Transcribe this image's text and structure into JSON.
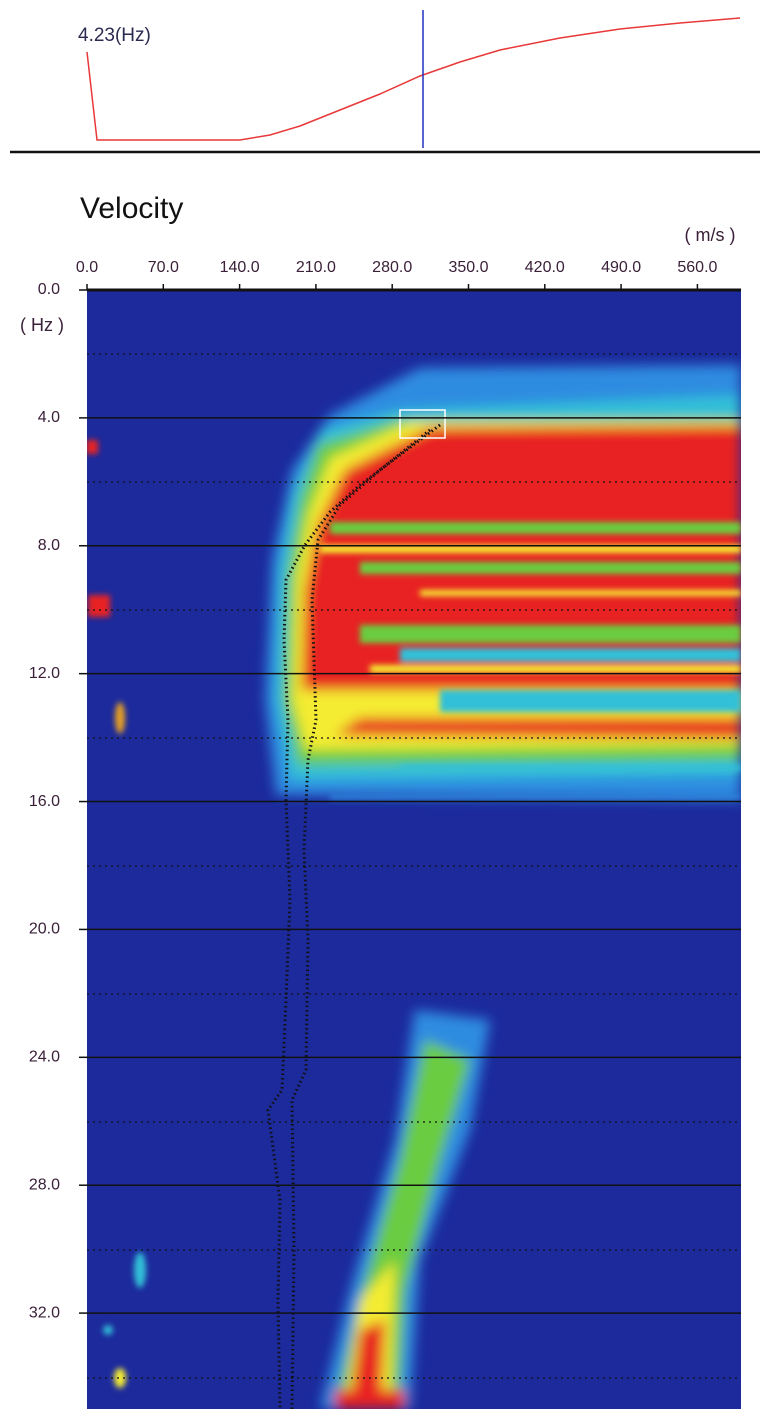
{
  "chart_data": {
    "type": "heatmap",
    "annotation": "4.23(Hz)",
    "title": "Velocity",
    "x_label": "( m/s )",
    "y_label": "( Hz )",
    "xlim": [
      0,
      600
    ],
    "xticks": [
      {
        "value": 0,
        "label": "0.0"
      },
      {
        "value": 70,
        "label": "70.0"
      },
      {
        "value": 140,
        "label": "140.0"
      },
      {
        "value": 210,
        "label": "210.0"
      },
      {
        "value": 280,
        "label": "280.0"
      },
      {
        "value": 350,
        "label": "350.0"
      },
      {
        "value": 420,
        "label": "420.0"
      },
      {
        "value": 490,
        "label": "490.0"
      },
      {
        "value": 560,
        "label": "560.0"
      }
    ],
    "ylim": [
      0,
      35
    ],
    "yticks": [
      {
        "value": 0,
        "label": "0.0"
      },
      {
        "value": 4,
        "label": "4.0"
      },
      {
        "value": 8,
        "label": "8.0"
      },
      {
        "value": 12,
        "label": "12.0"
      },
      {
        "value": 16,
        "label": "16.0"
      },
      {
        "value": 20,
        "label": "20.0"
      },
      {
        "value": 24,
        "label": "24.0"
      },
      {
        "value": 28,
        "label": "28.0"
      },
      {
        "value": 32,
        "label": "32.0"
      }
    ],
    "grid": true
  }
}
